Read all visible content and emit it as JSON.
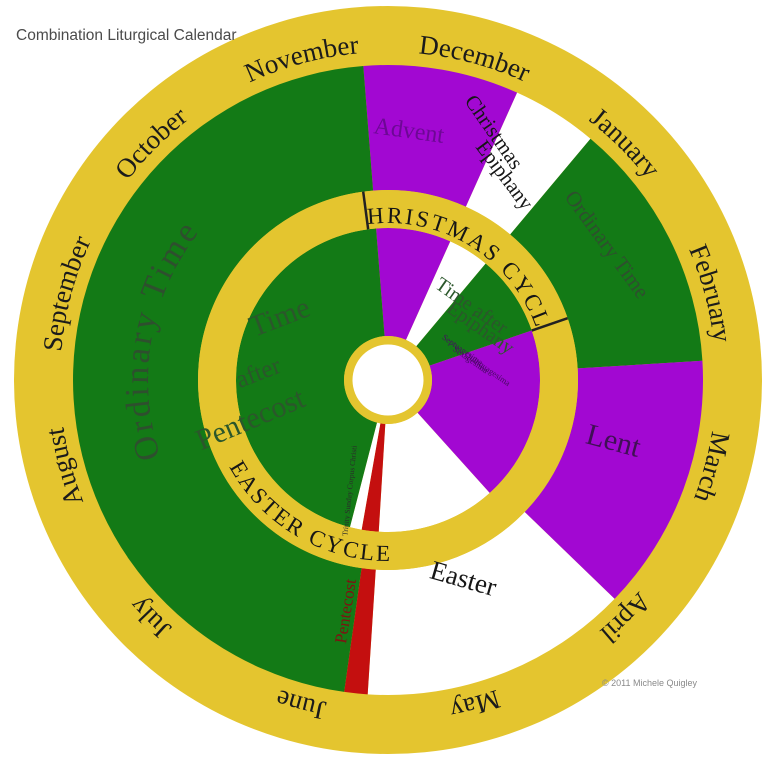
{
  "title": "Combination Liturgical Calendar",
  "copyright": "© 2011 Michele Quigley",
  "months": [
    "December",
    "January",
    "February",
    "March",
    "April",
    "May",
    "June",
    "July",
    "August",
    "September",
    "October",
    "November"
  ],
  "cycles": {
    "christmas": "CHRISTMAS CYCLE",
    "easter": "EASTER CYCLE"
  },
  "seasons": {
    "advent": "Advent",
    "christmas": "Christmas",
    "epiphany": "Epiphany",
    "ordinary_time_1": "Ordinary Time",
    "lent": "Lent",
    "easter": "Easter",
    "pentecost": "Pentecost",
    "ordinary_time_2": "Ordinary Time"
  },
  "inner": {
    "time_after_pentecost": [
      "Time",
      "after",
      "Pentecost"
    ],
    "time_after_epiphany": [
      "Time after",
      "Epiphany"
    ],
    "pre_lent": [
      "Septuagesima",
      "Sexagesima",
      "Quinquagesima"
    ],
    "trinity": "Trinity Sunday Corpus Christi"
  },
  "colors": {
    "gold": "#e4c52f",
    "green": "#137a16",
    "purple": "#a208d2",
    "red": "#c40f0f",
    "white": "#ffffff"
  }
}
